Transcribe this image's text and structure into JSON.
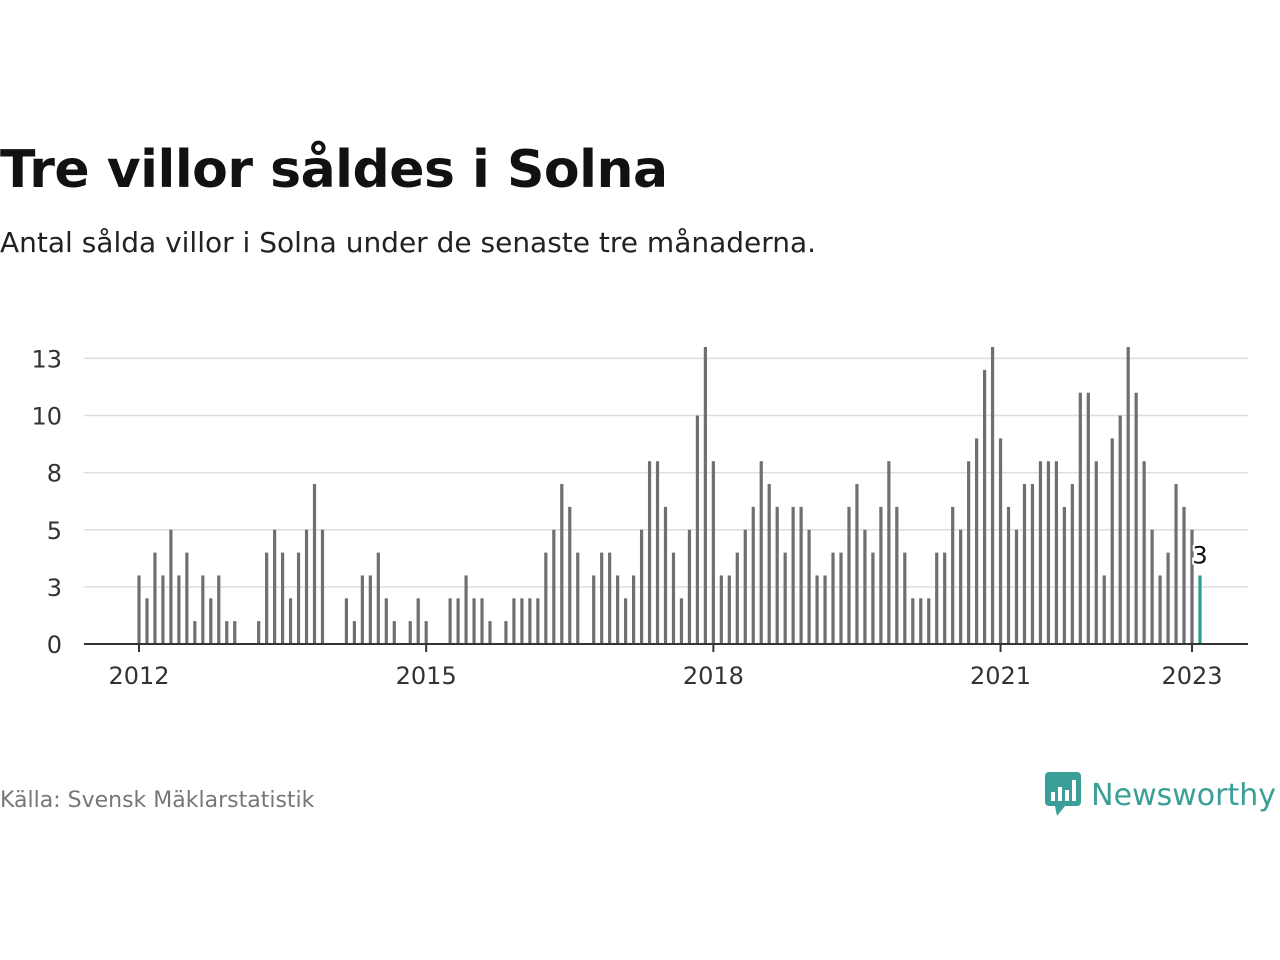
{
  "header": {
    "title": "Tre villor såldes i Solna",
    "subtitle": "Antal sålda villor i Solna under de senaste tre månaderna."
  },
  "footer": {
    "source": "Källa: Svensk Mäklarstatistik",
    "brand": "Newsworthy",
    "brand_icon": "newsworthy-logo-icon"
  },
  "colors": {
    "bar": "#6e6e73",
    "highlight": "#2a9d90",
    "grid": "#dddddd",
    "axis": "#333333",
    "text": "#333333"
  },
  "chart_data": {
    "type": "bar",
    "title": "Tre villor såldes i Solna",
    "subtitle": "Antal sålda villor i Solna under de senaste tre månaderna.",
    "x_start": "2012-01",
    "x_end": "2023-01",
    "x_ticks": [
      {
        "label": "2012",
        "date": "2012-01"
      },
      {
        "label": "2015",
        "date": "2015-01"
      },
      {
        "label": "2018",
        "date": "2018-01"
      },
      {
        "label": "2021",
        "date": "2021-01"
      },
      {
        "label": "2023",
        "date": "2023-01"
      }
    ],
    "y_ticks": [
      {
        "label": "0",
        "value": 0
      },
      {
        "label": "3",
        "value": 2.5
      },
      {
        "label": "5",
        "value": 5
      },
      {
        "label": "8",
        "value": 7.5
      },
      {
        "label": "10",
        "value": 10
      },
      {
        "label": "13",
        "value": 12.5
      }
    ],
    "ylim": [
      0,
      13
    ],
    "grid": true,
    "highlight_label": "3",
    "series": [
      {
        "values": [
          3,
          2,
          4,
          3,
          5,
          3,
          4,
          1,
          3,
          2,
          3,
          1,
          1,
          0,
          0,
          1,
          4,
          5,
          4,
          2,
          4,
          5,
          7,
          5,
          0,
          0,
          2,
          1,
          3,
          3,
          4,
          2,
          1,
          0,
          1,
          2,
          1,
          0,
          0,
          2,
          2,
          3,
          2,
          2,
          1,
          0,
          1,
          2,
          2,
          2,
          2,
          4,
          5,
          7,
          6,
          4,
          0,
          3,
          4,
          4,
          3,
          2,
          3,
          5,
          8,
          8,
          6,
          4,
          2,
          5,
          10,
          13,
          8,
          3,
          3,
          4,
          5,
          6,
          8,
          7,
          6,
          4,
          6,
          6,
          5,
          3,
          3,
          4,
          4,
          6,
          7,
          5,
          4,
          6,
          8,
          6,
          4,
          2,
          2,
          2,
          4,
          4,
          6,
          5,
          8,
          9,
          12,
          13,
          9,
          6,
          5,
          7,
          7,
          8,
          8,
          8,
          6,
          7,
          11,
          11,
          8,
          3,
          9,
          10,
          13,
          11,
          8,
          5,
          3,
          4,
          7,
          6,
          5,
          3
        ]
      }
    ]
  }
}
